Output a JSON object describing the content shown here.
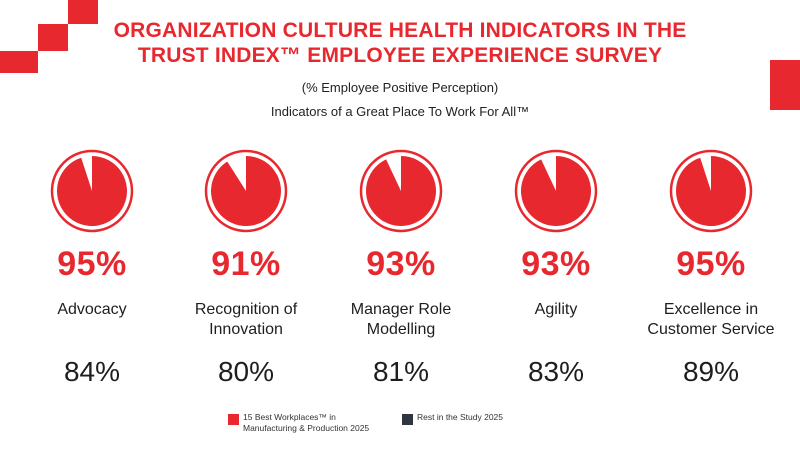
{
  "title_line1": "ORGANIZATION CULTURE HEALTH INDICATORS IN THE",
  "title_line2": "TRUST INDEX™ EMPLOYEE EXPERIENCE SURVEY",
  "subtitle": "(% Employee Positive Perception)",
  "subtitle2": "Indicators of a Great Place To Work For All™",
  "colors": {
    "accent": "#e8282f",
    "rest": "#2f3640",
    "text": "#1e1e1e"
  },
  "chart_data": {
    "type": "pie",
    "categories": [
      "Advocacy",
      "Recognition of Innovation",
      "Manager Role Modelling",
      "Agility",
      "Excellence in Customer Service"
    ],
    "category_lines": [
      [
        "Advocacy",
        ""
      ],
      [
        "Recognition of",
        "Innovation"
      ],
      [
        "Manager Role",
        "Modelling"
      ],
      [
        "Agility",
        ""
      ],
      [
        "Excellence in",
        "Customer Service"
      ]
    ],
    "series": [
      {
        "name": "15 Best Workplaces™ in Manufacturing & Production 2025",
        "values": [
          95,
          91,
          93,
          93,
          95
        ]
      },
      {
        "name": "Rest in the Study 2025",
        "values": [
          84,
          80,
          81,
          83,
          89
        ]
      }
    ],
    "pct_labels": [
      "95%",
      "91%",
      "93%",
      "93%",
      "95%"
    ],
    "rest_labels": [
      "84%",
      "80%",
      "81%",
      "83%",
      "89%"
    ],
    "legend": [
      {
        "line1": "15 Best Workplaces™ in",
        "line2": "Manufacturing & Production 2025",
        "color": "#e8282f"
      },
      {
        "line1": "Rest in the Study 2025",
        "line2": "",
        "color": "#2f3640"
      }
    ]
  }
}
